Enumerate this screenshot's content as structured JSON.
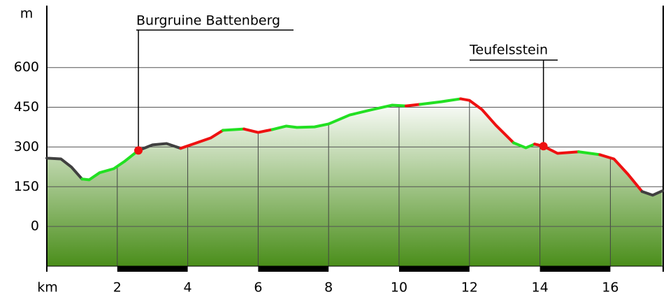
{
  "chart_data": {
    "type": "line",
    "y_label": "m",
    "x_label": "km",
    "xlim": [
      0,
      17.5
    ],
    "ylim": [
      -150,
      834
    ],
    "xticks": [
      2,
      4,
      6,
      8,
      10,
      12,
      14,
      16
    ],
    "yticks": [
      0,
      150,
      300,
      450,
      600
    ],
    "grid": true,
    "series": [
      {
        "color": "#404040",
        "x": [
          0,
          0.4,
          0.7,
          1.0
        ],
        "values": [
          258,
          255,
          224,
          179
        ]
      },
      {
        "color": "#22e022",
        "x": [
          1.0,
          1.2,
          1.5,
          1.9,
          2.2,
          2.6
        ],
        "values": [
          179,
          176,
          203,
          218,
          245,
          287
        ]
      },
      {
        "color": "#404040",
        "x": [
          2.6,
          3.0,
          3.4,
          3.8
        ],
        "values": [
          287,
          308,
          313,
          295
        ]
      },
      {
        "color": "#ee1111",
        "x": [
          3.8,
          4.15,
          4.65,
          5.0
        ],
        "values": [
          295,
          311,
          334,
          363
        ]
      },
      {
        "color": "#22e022",
        "x": [
          5.0,
          5.6
        ],
        "values": [
          363,
          368
        ]
      },
      {
        "color": "#ee1111",
        "x": [
          5.6,
          6.0,
          6.4
        ],
        "values": [
          368,
          355,
          366
        ]
      },
      {
        "color": "#22e022",
        "x": [
          6.4,
          6.8,
          7.1,
          7.6,
          8.0,
          8.6,
          9.2,
          9.8,
          10.2
        ],
        "values": [
          366,
          379,
          374,
          376,
          387,
          421,
          440,
          458,
          455
        ]
      },
      {
        "color": "#ee1111",
        "x": [
          10.2,
          10.6
        ],
        "values": [
          455,
          461
        ]
      },
      {
        "color": "#22e022",
        "x": [
          10.6,
          11.2,
          11.75
        ],
        "values": [
          461,
          471,
          482
        ]
      },
      {
        "color": "#ee1111",
        "x": [
          11.75,
          12.0,
          12.35,
          12.75,
          13.25
        ],
        "values": [
          482,
          476,
          442,
          382,
          316
        ]
      },
      {
        "color": "#22e022",
        "x": [
          13.25,
          13.6,
          13.85
        ],
        "values": [
          316,
          297,
          311
        ]
      },
      {
        "color": "#ee1111",
        "x": [
          13.85,
          14.1,
          14.5,
          15.1
        ],
        "values": [
          311,
          303,
          276,
          282
        ]
      },
      {
        "color": "#22e022",
        "x": [
          15.1,
          15.7
        ],
        "values": [
          282,
          271
        ]
      },
      {
        "color": "#ee1111",
        "x": [
          15.7,
          16.1,
          16.5,
          16.9
        ],
        "values": [
          271,
          255,
          197,
          132
        ]
      },
      {
        "color": "#404040",
        "x": [
          16.9,
          17.2,
          17.47
        ],
        "values": [
          132,
          118,
          134
        ]
      }
    ],
    "annotations": [
      {
        "label": "Burgruine Battenberg",
        "x": 2.6,
        "y": 287
      },
      {
        "label": "Teufelsstein",
        "x": 14.1,
        "y": 303
      }
    ]
  }
}
